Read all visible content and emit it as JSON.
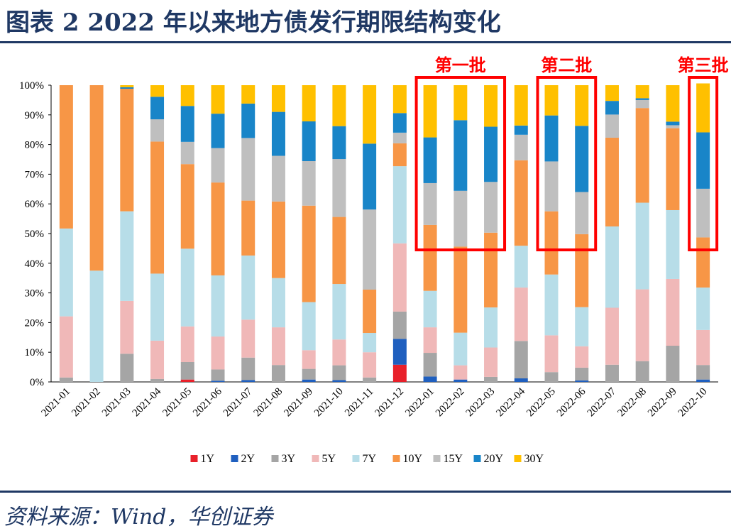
{
  "title": "图表 2  2022 年以来地方债发行期限结构变化",
  "source": "资料来源：Wind，华创证券",
  "colors": {
    "header_rule": "#1f3864",
    "highlight_box": "#ff0000"
  },
  "chart_data": {
    "type": "bar",
    "stacked": true,
    "percent": true,
    "ylim": [
      0,
      100
    ],
    "yticks": [
      "0%",
      "10%",
      "20%",
      "30%",
      "40%",
      "50%",
      "60%",
      "70%",
      "80%",
      "90%",
      "100%"
    ],
    "legend_position": "bottom",
    "categories": [
      "2021-01",
      "2021-02",
      "2021-03",
      "2021-04",
      "2021-05",
      "2021-06",
      "2021-07",
      "2021-08",
      "2021-09",
      "2021-10",
      "2021-11",
      "2021-12",
      "2022-01",
      "2022-02",
      "2022-03",
      "2022-04",
      "2022-05",
      "2022-06",
      "2022-07",
      "2022-08",
      "2022-09",
      "2022-10"
    ],
    "series": [
      {
        "name": "1Y",
        "color": "#e8202a",
        "values": [
          0,
          0,
          0,
          0,
          0.8,
          0,
          0,
          0,
          0,
          0,
          0,
          5.8,
          0,
          0,
          0,
          0,
          0,
          0,
          0,
          0,
          0,
          0
        ]
      },
      {
        "name": "2Y",
        "color": "#1f5fbf",
        "values": [
          0,
          0,
          0,
          0,
          0,
          0.4,
          0.6,
          0,
          0.8,
          0.6,
          0,
          8.7,
          1.8,
          0.8,
          0,
          1.2,
          0,
          0.5,
          0,
          0,
          0,
          0.8
        ]
      },
      {
        "name": "3Y",
        "color": "#a5a5a5",
        "values": [
          1.5,
          0,
          9.5,
          1.0,
          5.9,
          3.8,
          7.6,
          5.7,
          3.6,
          5.0,
          1.5,
          9.2,
          8.0,
          0,
          1.7,
          12.6,
          3.3,
          4.3,
          5.8,
          7.0,
          12.2,
          4.9
        ]
      },
      {
        "name": "5Y",
        "color": "#f0b8b8",
        "values": [
          20.6,
          0,
          17.8,
          12.9,
          12.0,
          11.1,
          12.8,
          12.7,
          6.3,
          8.7,
          8.5,
          23.0,
          8.6,
          4.8,
          9.9,
          18.0,
          12.4,
          7.2,
          19.2,
          24.2,
          22.5,
          11.8
        ]
      },
      {
        "name": "7Y",
        "color": "#b7dde8",
        "values": [
          29.6,
          37.5,
          30.2,
          22.6,
          26.2,
          20.6,
          21.6,
          16.6,
          16.2,
          18.7,
          6.5,
          26.0,
          12.3,
          11.0,
          13.5,
          14.1,
          20.5,
          13.2,
          27.4,
          29.2,
          23.2,
          14.3
        ]
      },
      {
        "name": "10Y",
        "color": "#f79646",
        "values": [
          48.3,
          62.5,
          41.3,
          44.5,
          28.5,
          31.3,
          18.5,
          25.8,
          32.5,
          22.6,
          14.6,
          7.7,
          22.2,
          29.0,
          25.2,
          28.8,
          21.3,
          24.6,
          29.9,
          31.9,
          27.6,
          16.9
        ]
      },
      {
        "name": "15Y",
        "color": "#bfbfbf",
        "values": [
          0,
          0,
          0,
          7.5,
          7.5,
          11.6,
          21.1,
          15.4,
          15.0,
          19.5,
          27.0,
          3.6,
          14.1,
          18.8,
          17.1,
          8.6,
          16.8,
          14.2,
          7.8,
          2.7,
          1.0,
          16.4
        ]
      },
      {
        "name": "20Y",
        "color": "#1985c8",
        "values": [
          0,
          0,
          0.5,
          7.6,
          12.1,
          11.6,
          11.6,
          14.8,
          13.4,
          11.1,
          22.2,
          6.6,
          15.4,
          23.8,
          18.6,
          3.1,
          15.5,
          22.3,
          4.6,
          0.6,
          1.2,
          19.0
        ]
      },
      {
        "name": "30Y",
        "color": "#ffc000",
        "values": [
          0,
          0,
          0.7,
          3.9,
          7.0,
          9.6,
          6.2,
          9.0,
          12.2,
          13.8,
          19.7,
          9.4,
          17.6,
          11.8,
          14.0,
          13.6,
          10.2,
          13.7,
          5.3,
          4.4,
          12.3,
          16.5
        ]
      }
    ],
    "annotations": [
      {
        "label": "第一批",
        "from": "2022-01",
        "to": "2022-03"
      },
      {
        "label": "第二批",
        "from": "2022-05",
        "to": "2022-06"
      },
      {
        "label": "第三批",
        "from": "2022-10",
        "to": "2022-10"
      }
    ]
  }
}
